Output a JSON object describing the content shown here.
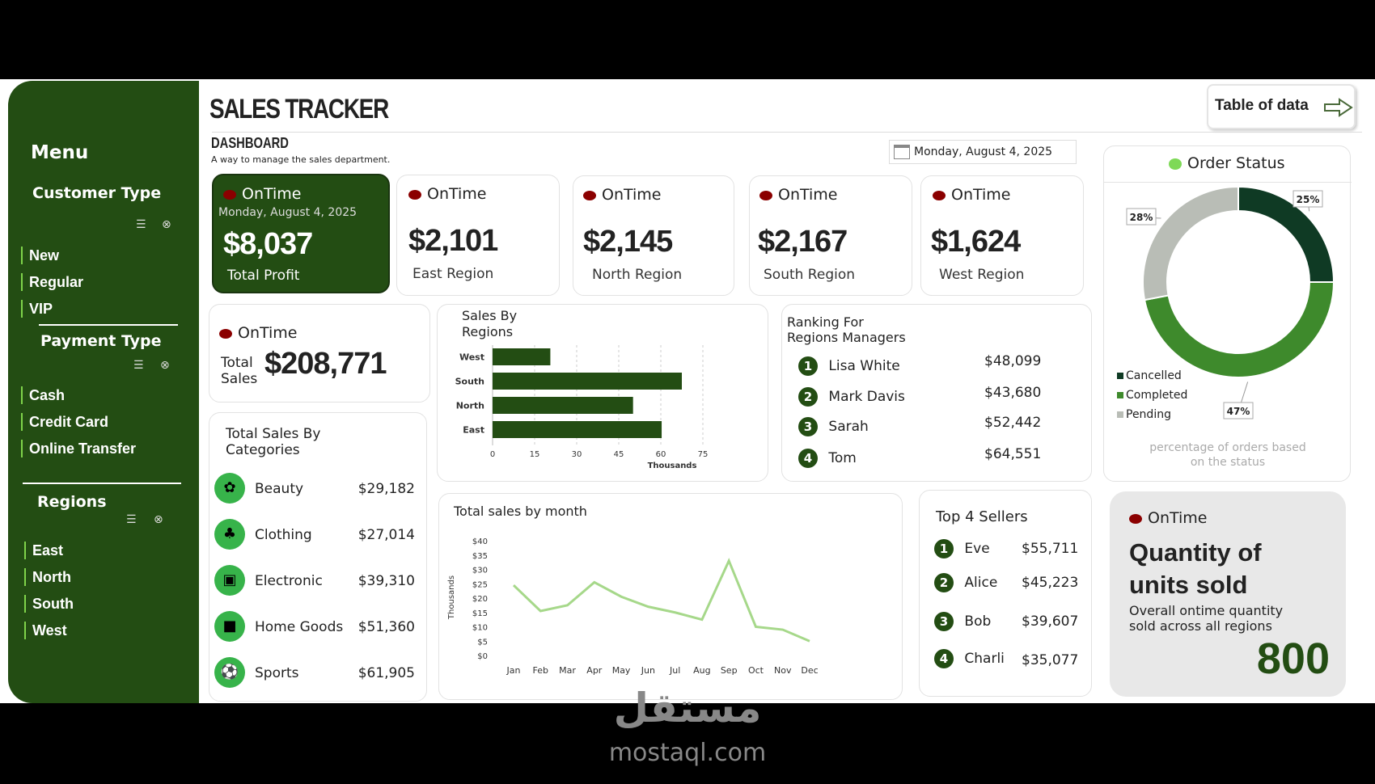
{
  "header": {
    "title": "SALES TRACKER",
    "subtitle": "DASHBOARD",
    "description": "A way to manage the sales department.",
    "date": "Monday, August 4, 2025",
    "table_button": "Table of data"
  },
  "sidebar": {
    "menu": "Menu",
    "customer_type": {
      "title": "Customer Type",
      "items": [
        "New",
        "Regular",
        "VIP"
      ]
    },
    "payment_type": {
      "title": "Payment Type",
      "items": [
        "Cash",
        "Credit Card",
        "Online Transfer"
      ]
    },
    "regions": {
      "title": "Regions",
      "items": [
        "East",
        "North",
        "South",
        "West"
      ]
    }
  },
  "kpis": {
    "profit": {
      "status": "OnTime",
      "date": "Monday, August 4, 2025",
      "value": "$8,037",
      "label": "Total Profit"
    },
    "east": {
      "status": "OnTime",
      "value": "$2,101",
      "label": "East Region"
    },
    "north": {
      "status": "OnTime",
      "value": "$2,145",
      "label": "North Region"
    },
    "south": {
      "status": "OnTime",
      "value": "$2,167",
      "label": "South Region"
    },
    "west": {
      "status": "OnTime",
      "value": "$1,624",
      "label": "West Region"
    },
    "total_sales": {
      "status": "OnTime",
      "label1": "Total",
      "label2": "Sales",
      "value": "$208,771"
    }
  },
  "categories": {
    "title1": "Total Sales By",
    "title2": "Categories",
    "items": [
      {
        "name": "Beauty",
        "value": "$29,182",
        "icon": "lotus-icon"
      },
      {
        "name": "Clothing",
        "value": "$27,014",
        "icon": "shirt-icon"
      },
      {
        "name": "Electronic",
        "value": "$39,310",
        "icon": "washer-icon"
      },
      {
        "name": "Home Goods",
        "value": "$51,360",
        "icon": "sofa-icon"
      },
      {
        "name": "Sports",
        "value": "$61,905",
        "icon": "sports-icon"
      }
    ]
  },
  "ranking": {
    "title1": "Ranking For",
    "title2": "Regions Managers",
    "items": [
      {
        "rank": "1",
        "name": "Lisa White",
        "value": "$48,099"
      },
      {
        "rank": "2",
        "name": "Mark Davis",
        "value": "$43,680"
      },
      {
        "rank": "3",
        "name": "Sarah",
        "value": "$52,442"
      },
      {
        "rank": "4",
        "name": "Tom",
        "value": "$64,551"
      }
    ]
  },
  "top_sellers": {
    "title": "Top 4 Sellers",
    "items": [
      {
        "rank": "1",
        "name": "Eve",
        "value": "$55,711"
      },
      {
        "rank": "2",
        "name": "Alice",
        "value": "$45,223"
      },
      {
        "rank": "3",
        "name": "Bob",
        "value": "$39,607"
      },
      {
        "rank": "4",
        "name": "Charli",
        "value": "$35,077"
      }
    ]
  },
  "quantity": {
    "status": "OnTime",
    "title1": "Quantity of",
    "title2": "units sold",
    "desc1": "Overall ontime quantity",
    "desc2": "sold across all regions",
    "value": "800"
  },
  "order_status_note": {
    "line1": "percentage of orders based",
    "line2": "on the status"
  },
  "watermark": {
    "logo": "مستقل",
    "url": "mostaql.com"
  },
  "colors": {
    "dark_green": "#234d13",
    "accent_green": "#37b34a",
    "status_red": "#8b0000",
    "line": "#a6d88a"
  },
  "chart_data": [
    {
      "type": "bar",
      "title": "Sales By Regions",
      "title_lines": [
        "Sales By",
        "Regions"
      ],
      "orientation": "horizontal",
      "categories": [
        "West",
        "South",
        "North",
        "East"
      ],
      "values": [
        20.6,
        67.5,
        50.1,
        60.3
      ],
      "xlabel": "Thousands",
      "xlim": [
        0,
        75
      ],
      "xticks": [
        "0",
        "15",
        "30",
        "45",
        "60",
        "75"
      ],
      "color": "#234d13"
    },
    {
      "type": "line",
      "title": "Total sales by month",
      "ylabel": "Thousands",
      "x": [
        "Jan",
        "Feb",
        "Mar",
        "Apr",
        "May",
        "Jun",
        "Jul",
        "Aug",
        "Sep",
        "Oct",
        "Nov",
        "Dec"
      ],
      "values": [
        24.5,
        15.5,
        17.5,
        25.5,
        20.5,
        17,
        15,
        12.5,
        33,
        10,
        9,
        5
      ],
      "ylim": [
        0,
        40
      ],
      "yticks": [
        "$0",
        "$5",
        "$10",
        "$15",
        "$20",
        "$25",
        "$30",
        "$35",
        "$40"
      ],
      "color": "#a6d88a"
    },
    {
      "type": "pie",
      "title": "Order Status",
      "donut": true,
      "labels": [
        "Cancelled",
        "Completed",
        "Pending"
      ],
      "values": [
        25,
        47,
        28
      ],
      "value_labels": [
        "25%",
        "47%",
        "28%"
      ],
      "colors": [
        "#0f3a24",
        "#3e8a2c",
        "#b9bdb6"
      ],
      "legend": "bottom-left"
    }
  ]
}
